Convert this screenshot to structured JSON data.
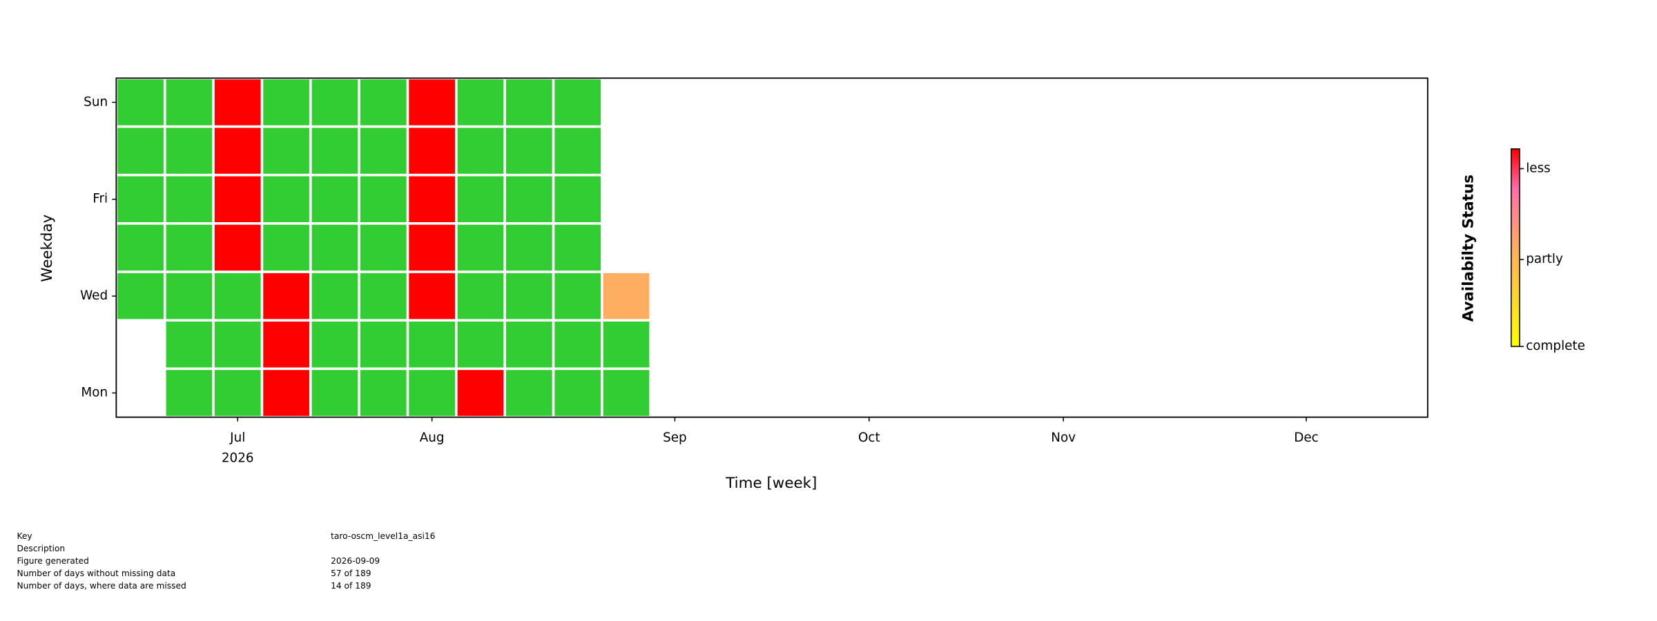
{
  "chart_data": {
    "type": "calendar-heatmap",
    "x_label": "Time [week]",
    "y_label": "Weekday",
    "weeks": [
      0,
      1,
      2,
      3,
      4,
      5,
      6,
      7,
      8,
      9,
      10
    ],
    "values": [
      [
        null,
        null,
        0,
        0,
        0,
        0,
        0
      ],
      [
        0,
        0,
        0,
        0,
        0,
        0,
        0
      ],
      [
        0,
        0,
        0,
        1,
        1,
        1,
        1
      ],
      [
        1,
        1,
        1,
        0,
        0,
        0,
        0
      ],
      [
        0,
        0,
        0,
        0,
        0,
        0,
        0
      ],
      [
        0,
        0,
        0,
        0,
        0,
        0,
        0
      ],
      [
        0,
        0,
        1,
        1,
        1,
        1,
        1
      ],
      [
        1,
        0,
        0,
        0,
        0,
        0,
        0
      ],
      [
        0,
        0,
        0,
        0,
        0,
        0,
        0
      ],
      [
        0,
        0,
        0,
        0,
        0,
        0,
        0
      ],
      [
        0,
        0,
        0.5,
        null,
        null,
        null,
        null
      ]
    ],
    "zero_color": "#32cd32",
    "colormap": [
      "#ffff00",
      "#ffad60",
      "#ff6eaa",
      "#ff0000"
    ],
    "colormap_stops": [
      0,
      0.5,
      0.8,
      1
    ],
    "xlim": [
      -0.5,
      26.5
    ],
    "xticks": [
      {
        "value": 2,
        "label": "Jul"
      },
      {
        "value": 6,
        "label": "Aug"
      },
      {
        "value": 11,
        "label": "Sep"
      },
      {
        "value": 15,
        "label": "Oct"
      },
      {
        "value": 19,
        "label": "Nov"
      },
      {
        "value": 24,
        "label": "Dec"
      }
    ],
    "xtick_year": "2026",
    "ylim": [
      -0.5,
      6.5
    ],
    "yticks": [
      {
        "value": 0,
        "label": "Mon"
      },
      {
        "value": 2,
        "label": "Wed"
      },
      {
        "value": 4,
        "label": "Fri"
      },
      {
        "value": 6,
        "label": "Sun"
      }
    ],
    "colorbar": {
      "label": "Availabilty Status",
      "clim": [
        0,
        1
      ],
      "ticks": [
        {
          "value": 0,
          "label": "complete"
        },
        {
          "value": 0.44,
          "label": "partly"
        },
        {
          "value": 0.9,
          "label": "less"
        }
      ]
    }
  },
  "info": [
    {
      "label": "Key",
      "value": "taro-oscm_level1a_asi16"
    },
    {
      "label": "Description"
    },
    {
      "label": "Figure generated",
      "value": "2026-09-09"
    },
    {
      "label": "Number of days without missing data",
      "value": "57 of 189"
    },
    {
      "label": "Number of days, where data are missed",
      "value": "14 of 189"
    }
  ]
}
